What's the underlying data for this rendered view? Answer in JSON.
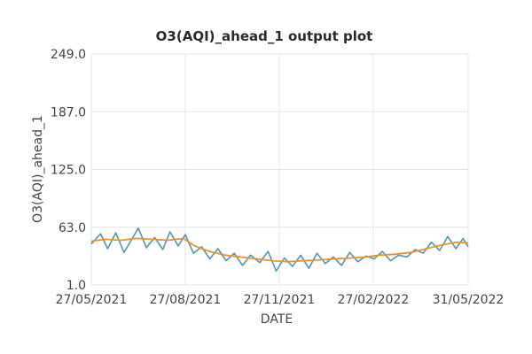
{
  "chart_data": {
    "type": "line",
    "title": "O3(AQI)_ahead_1 output plot",
    "xlabel": "DATE",
    "ylabel": "O3(AQI)_ahead_1",
    "x_range": [
      "2021-05-27",
      "2022-05-31"
    ],
    "ylim": [
      1.0,
      249.0
    ],
    "y_ticks": [
      "1.0",
      "63.0",
      "125.0",
      "187.0",
      "249.0"
    ],
    "y_tick_values": [
      1,
      63,
      125,
      187,
      249
    ],
    "x_ticks": [
      "27/05/2021",
      "27/08/2021",
      "27/11/2021",
      "27/02/2022",
      "31/05/2022"
    ],
    "x_tick_dates": [
      "2021-05-27",
      "2021-08-27",
      "2021-11-27",
      "2022-02-27",
      "2022-05-31"
    ],
    "grid": true,
    "legend": "none",
    "series": [
      {
        "color": "#4a98b8",
        "x": [
          "2021-05-27",
          "2021-06-05",
          "2021-06-12",
          "2021-06-20",
          "2021-06-28",
          "2021-07-05",
          "2021-07-12",
          "2021-07-20",
          "2021-07-28",
          "2021-08-05",
          "2021-08-12",
          "2021-08-20",
          "2021-08-27",
          "2021-09-04",
          "2021-09-12",
          "2021-09-20",
          "2021-09-28",
          "2021-10-06",
          "2021-10-14",
          "2021-10-22",
          "2021-10-30",
          "2021-11-08",
          "2021-11-16",
          "2021-11-24",
          "2021-12-02",
          "2021-12-10",
          "2021-12-18",
          "2021-12-26",
          "2022-01-03",
          "2022-01-11",
          "2022-01-19",
          "2022-01-27",
          "2022-02-04",
          "2022-02-12",
          "2022-02-20",
          "2022-02-28",
          "2022-03-08",
          "2022-03-16",
          "2022-03-24",
          "2022-04-01",
          "2022-04-09",
          "2022-04-17",
          "2022-04-25",
          "2022-05-03",
          "2022-05-11",
          "2022-05-19",
          "2022-05-26",
          "2022-05-31"
        ],
        "values": [
          45,
          56,
          40,
          57,
          36,
          49,
          62,
          41,
          52,
          39,
          58,
          43,
          55,
          35,
          42,
          29,
          40,
          27,
          35,
          22,
          33,
          25,
          37,
          16,
          30,
          21,
          33,
          19,
          35,
          24,
          31,
          22,
          36,
          26,
          32,
          29,
          37,
          27,
          33,
          31,
          39,
          35,
          47,
          38,
          53,
          40,
          51,
          42
        ]
      },
      {
        "color": "#e8922c",
        "x": [
          "2021-05-27",
          "2021-06-10",
          "2021-06-25",
          "2021-07-10",
          "2021-07-25",
          "2021-08-10",
          "2021-08-25",
          "2021-09-05",
          "2021-09-20",
          "2021-10-05",
          "2021-10-20",
          "2021-11-05",
          "2021-11-20",
          "2021-12-05",
          "2021-12-20",
          "2022-01-05",
          "2022-01-20",
          "2022-02-05",
          "2022-02-20",
          "2022-03-05",
          "2022-03-20",
          "2022-04-05",
          "2022-04-20",
          "2022-05-05",
          "2022-05-20",
          "2022-05-31"
        ],
        "values": [
          48,
          50,
          49,
          51,
          50,
          49,
          51,
          43,
          37,
          33,
          31,
          29,
          27,
          26,
          27,
          28,
          29,
          30,
          31,
          33,
          34,
          36,
          40,
          44,
          47,
          46
        ]
      }
    ]
  }
}
